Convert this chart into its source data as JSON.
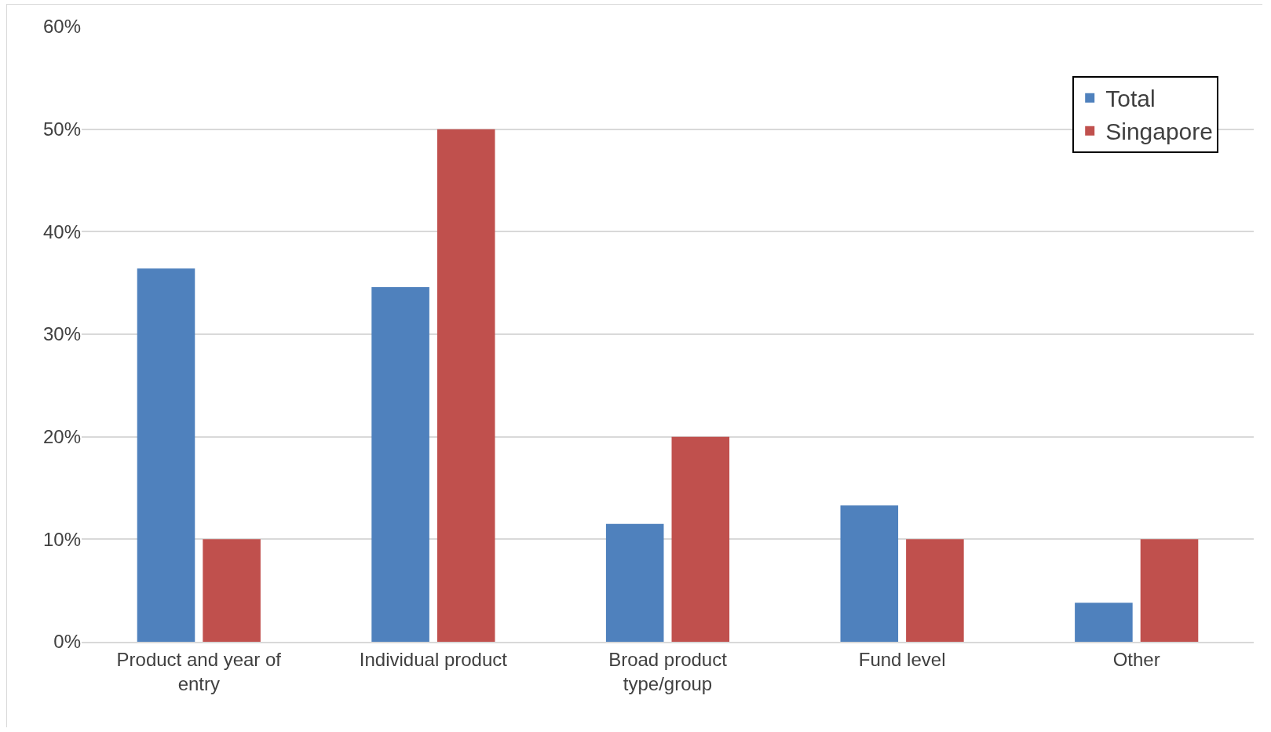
{
  "chart_data": {
    "type": "bar",
    "categories": [
      "Product and year of entry",
      "Individual product",
      "Broad product type/group",
      "Fund level",
      "Other"
    ],
    "series": [
      {
        "name": "Total",
        "color": "#4f81bd",
        "values": [
          36.4,
          34.6,
          11.5,
          13.3,
          3.8
        ]
      },
      {
        "name": "Singapore",
        "color": "#c0504d",
        "values": [
          10,
          50,
          20,
          10,
          10
        ]
      }
    ],
    "ylim": [
      0,
      60
    ],
    "yticks": [
      {
        "value": 0,
        "label": "0%"
      },
      {
        "value": 10,
        "label": "10%"
      },
      {
        "value": 20,
        "label": "20%"
      },
      {
        "value": 30,
        "label": "30%"
      },
      {
        "value": 40,
        "label": "40%"
      },
      {
        "value": 50,
        "label": "50%"
      },
      {
        "value": 60,
        "label": "60%"
      }
    ],
    "grid": "y",
    "legend": "top right"
  }
}
